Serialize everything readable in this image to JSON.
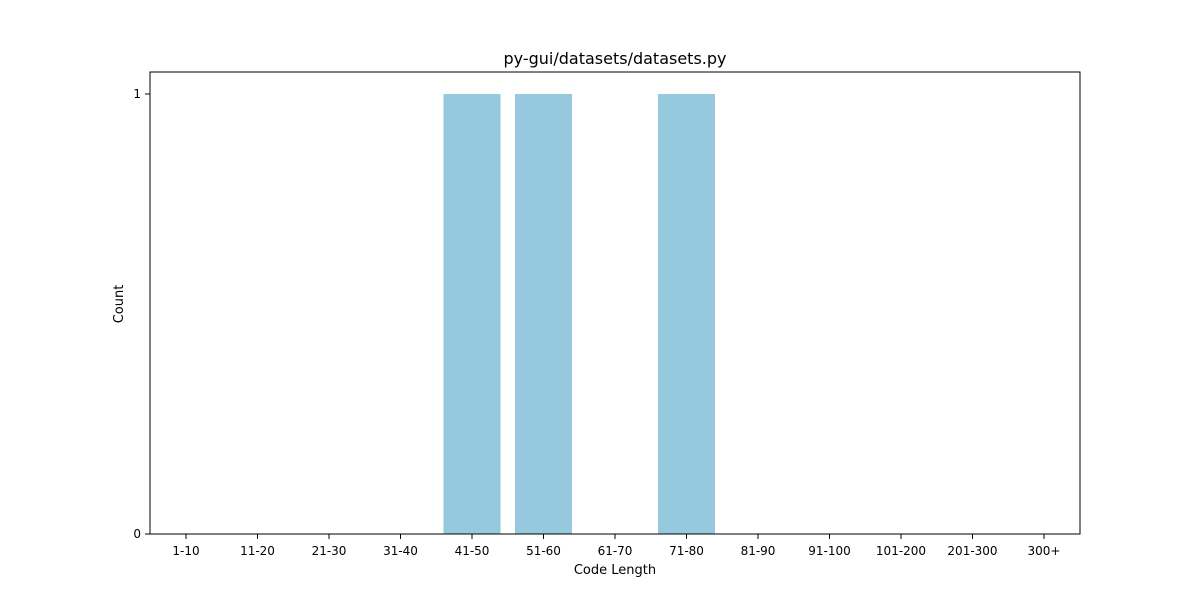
{
  "chart_data": {
    "type": "bar",
    "title": "py-gui/datasets/datasets.py",
    "xlabel": "Code Length",
    "ylabel": "Count",
    "categories": [
      "1-10",
      "11-20",
      "21-30",
      "31-40",
      "41-50",
      "51-60",
      "61-70",
      "71-80",
      "81-90",
      "91-100",
      "101-200",
      "201-300",
      "300+"
    ],
    "values": [
      0,
      0,
      0,
      0,
      1,
      1,
      0,
      1,
      0,
      0,
      0,
      0,
      0
    ],
    "y_ticks": [
      0,
      1
    ],
    "ylim": [
      0,
      1.05
    ],
    "grid": false,
    "legend": "none",
    "colors": {
      "bar": "#96c9dd",
      "axis": "#000000",
      "background": "#ffffff"
    }
  }
}
